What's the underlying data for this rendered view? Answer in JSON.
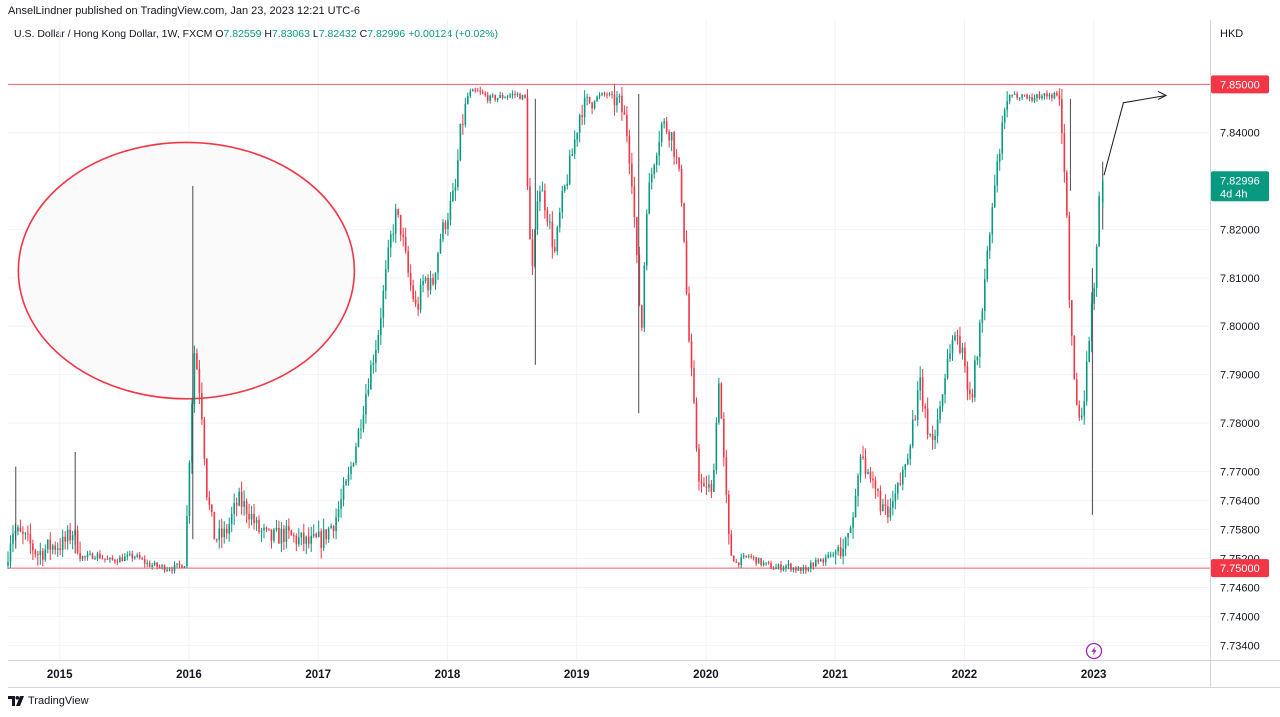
{
  "header": {
    "publisher": "AnselLindner published on TradingView.com, Jan 23, 2023 12:21 UTC-6",
    "symbol": "U.S. Dollar / Hong Kong Dollar, 1W, FXCM",
    "ohlc": {
      "o_label": "O",
      "o_value": "7.82559",
      "h_label": "H",
      "h_value": "7.83063",
      "l_label": "L",
      "l_value": "7.82432",
      "c_label": "C",
      "c_value": "7.82996",
      "change": "+0.00124 (+0.02%)"
    }
  },
  "price_axis": {
    "currency": "HKD"
  },
  "footer": {
    "brand": "TradingView"
  },
  "colors": {
    "up": "#089981",
    "down": "#f23645",
    "resistance": "#f23645",
    "last_price_bg": "#089981",
    "circle": "#f23645"
  },
  "chart_data": {
    "type": "candlestick",
    "title": "U.S. Dollar / Hong Kong Dollar, 1W, FXCM",
    "xlabel": "",
    "ylabel": "",
    "y_ticks": [
      {
        "value": 7.734,
        "label": "7.73400"
      },
      {
        "value": 7.74,
        "label": "7.74000"
      },
      {
        "value": 7.746,
        "label": "7.74600"
      },
      {
        "value": 7.752,
        "label": "7.75200"
      },
      {
        "value": 7.758,
        "label": "7.75800"
      },
      {
        "value": 7.764,
        "label": "7.76400"
      },
      {
        "value": 7.77,
        "label": "7.77000"
      },
      {
        "value": 7.78,
        "label": "7.78000"
      },
      {
        "value": 7.79,
        "label": "7.79000"
      },
      {
        "value": 7.8,
        "label": "7.80000"
      },
      {
        "value": 7.81,
        "label": "7.81000"
      },
      {
        "value": 7.82,
        "label": "7.82000"
      },
      {
        "value": 7.84,
        "label": "7.84000"
      }
    ],
    "x_ticks": [
      {
        "t": 2015,
        "label": "2015"
      },
      {
        "t": 2016,
        "label": "2016"
      },
      {
        "t": 2017,
        "label": "2017"
      },
      {
        "t": 2018,
        "label": "2018"
      },
      {
        "t": 2019,
        "label": "2019"
      },
      {
        "t": 2020,
        "label": "2020"
      },
      {
        "t": 2021,
        "label": "2021"
      },
      {
        "t": 2022,
        "label": "2022"
      },
      {
        "t": 2023,
        "label": "2023"
      }
    ],
    "x_range": [
      2014.6,
      2023.9
    ],
    "y_range": [
      7.731,
      7.8633
    ],
    "levels": [
      {
        "value": 7.85,
        "label": "7.85000"
      },
      {
        "value": 7.75,
        "label": "7.75000"
      }
    ],
    "last_price": {
      "value": 7.82996,
      "label": "7.82996",
      "countdown": "4d 4h"
    },
    "annotations": {
      "circle": {
        "t": 2015.98,
        "value": 7.8115,
        "rx_years": 1.0,
        "ry_price": 0.0265
      },
      "projection_arrow": [
        {
          "t": 2023.08,
          "value": 7.8312
        },
        {
          "t": 2023.23,
          "value": 7.8462
        },
        {
          "t": 2023.56,
          "value": 7.8477
        }
      ]
    },
    "anchors": [
      [
        2014.6,
        7.7505
      ],
      [
        2014.65,
        7.758
      ],
      [
        2014.75,
        7.756
      ],
      [
        2014.85,
        7.753
      ],
      [
        2014.95,
        7.7545
      ],
      [
        2015.05,
        7.755
      ],
      [
        2015.12,
        7.7575
      ],
      [
        2015.2,
        7.752
      ],
      [
        2015.3,
        7.7528
      ],
      [
        2015.4,
        7.7515
      ],
      [
        2015.5,
        7.752
      ],
      [
        2015.6,
        7.7525
      ],
      [
        2015.7,
        7.7508
      ],
      [
        2015.8,
        7.7502
      ],
      [
        2015.9,
        7.75
      ],
      [
        2015.99,
        7.751
      ],
      [
        2016.03,
        7.778
      ],
      [
        2016.06,
        7.795
      ],
      [
        2016.09,
        7.79
      ],
      [
        2016.12,
        7.782
      ],
      [
        2016.16,
        7.765
      ],
      [
        2016.22,
        7.756
      ],
      [
        2016.3,
        7.757
      ],
      [
        2016.4,
        7.764
      ],
      [
        2016.48,
        7.762
      ],
      [
        2016.55,
        7.758
      ],
      [
        2016.65,
        7.756
      ],
      [
        2016.75,
        7.757
      ],
      [
        2016.85,
        7.756
      ],
      [
        2016.95,
        7.755
      ],
      [
        2017.05,
        7.756
      ],
      [
        2017.15,
        7.76
      ],
      [
        2017.25,
        7.768
      ],
      [
        2017.33,
        7.778
      ],
      [
        2017.4,
        7.788
      ],
      [
        2017.48,
        7.798
      ],
      [
        2017.53,
        7.808
      ],
      [
        2017.58,
        7.818
      ],
      [
        2017.62,
        7.823
      ],
      [
        2017.66,
        7.82
      ],
      [
        2017.72,
        7.81
      ],
      [
        2017.78,
        7.803
      ],
      [
        2017.84,
        7.81
      ],
      [
        2017.9,
        7.808
      ],
      [
        2017.96,
        7.818
      ],
      [
        2018.02,
        7.823
      ],
      [
        2018.08,
        7.828
      ],
      [
        2018.12,
        7.84
      ],
      [
        2018.18,
        7.848
      ],
      [
        2018.25,
        7.8485
      ],
      [
        2018.35,
        7.847
      ],
      [
        2018.45,
        7.8475
      ],
      [
        2018.55,
        7.848
      ],
      [
        2018.62,
        7.847
      ],
      [
        2018.65,
        7.82
      ],
      [
        2018.68,
        7.81
      ],
      [
        2018.72,
        7.83
      ],
      [
        2018.78,
        7.825
      ],
      [
        2018.85,
        7.815
      ],
      [
        2018.9,
        7.825
      ],
      [
        2018.98,
        7.835
      ],
      [
        2019.05,
        7.845
      ],
      [
        2019.15,
        7.847
      ],
      [
        2019.25,
        7.848
      ],
      [
        2019.35,
        7.846
      ],
      [
        2019.4,
        7.842
      ],
      [
        2019.45,
        7.83
      ],
      [
        2019.48,
        7.815
      ],
      [
        2019.52,
        7.798
      ],
      [
        2019.56,
        7.825
      ],
      [
        2019.62,
        7.835
      ],
      [
        2019.68,
        7.842
      ],
      [
        2019.75,
        7.84
      ],
      [
        2019.8,
        7.833
      ],
      [
        2019.84,
        7.825
      ],
      [
        2019.88,
        7.8
      ],
      [
        2019.92,
        7.785
      ],
      [
        2019.96,
        7.77
      ],
      [
        2020.0,
        7.765
      ],
      [
        2020.03,
        7.768
      ],
      [
        2020.06,
        7.764
      ],
      [
        2020.1,
        7.78
      ],
      [
        2020.12,
        7.79
      ],
      [
        2020.15,
        7.775
      ],
      [
        2020.2,
        7.754
      ],
      [
        2020.25,
        7.751
      ],
      [
        2020.35,
        7.7525
      ],
      [
        2020.45,
        7.751
      ],
      [
        2020.55,
        7.75
      ],
      [
        2020.65,
        7.7505
      ],
      [
        2020.75,
        7.7495
      ],
      [
        2020.85,
        7.751
      ],
      [
        2020.95,
        7.752
      ],
      [
        2021.05,
        7.7535
      ],
      [
        2021.12,
        7.756
      ],
      [
        2021.18,
        7.765
      ],
      [
        2021.22,
        7.776
      ],
      [
        2021.27,
        7.768
      ],
      [
        2021.35,
        7.765
      ],
      [
        2021.42,
        7.76
      ],
      [
        2021.48,
        7.764
      ],
      [
        2021.55,
        7.77
      ],
      [
        2021.62,
        7.78
      ],
      [
        2021.68,
        7.788
      ],
      [
        2021.72,
        7.78
      ],
      [
        2021.78,
        7.776
      ],
      [
        2021.84,
        7.785
      ],
      [
        2021.9,
        7.795
      ],
      [
        2021.96,
        7.799
      ],
      [
        2022.02,
        7.792
      ],
      [
        2022.07,
        7.785
      ],
      [
        2022.12,
        7.795
      ],
      [
        2022.16,
        7.805
      ],
      [
        2022.2,
        7.815
      ],
      [
        2022.25,
        7.828
      ],
      [
        2022.3,
        7.838
      ],
      [
        2022.35,
        7.847
      ],
      [
        2022.45,
        7.848
      ],
      [
        2022.55,
        7.847
      ],
      [
        2022.62,
        7.848
      ],
      [
        2022.68,
        7.8475
      ],
      [
        2022.72,
        7.848
      ],
      [
        2022.76,
        7.846
      ],
      [
        2022.8,
        7.83
      ],
      [
        2022.84,
        7.8
      ],
      [
        2022.88,
        7.785
      ],
      [
        2022.92,
        7.78
      ],
      [
        2022.96,
        7.79
      ],
      [
        2022.99,
        7.8
      ],
      [
        2023.02,
        7.808
      ],
      [
        2023.05,
        7.82
      ],
      [
        2023.07,
        7.83
      ]
    ],
    "last_candle": {
      "t": 2023.07,
      "open": 7.82559,
      "high": 7.83063,
      "low": 7.82432,
      "close": 7.82996
    }
  }
}
